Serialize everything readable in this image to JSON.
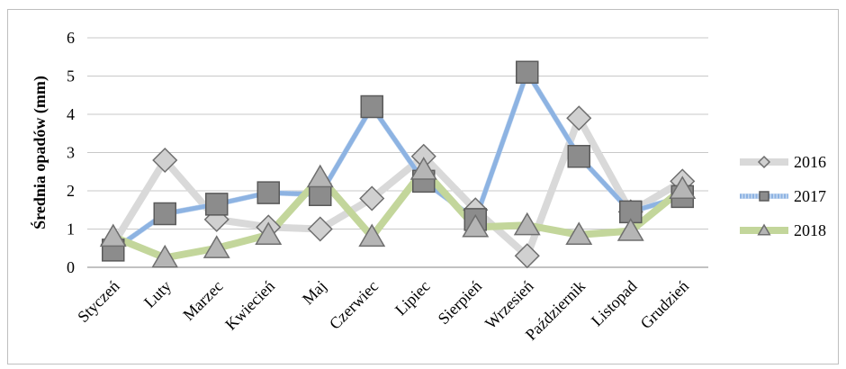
{
  "chart_data": {
    "type": "line",
    "title": "",
    "xlabel": "",
    "ylabel": "Średnia opadów (mm)",
    "ylim": [
      0,
      6
    ],
    "yticks": [
      0,
      1,
      2,
      3,
      4,
      5,
      6
    ],
    "grid": true,
    "legend_position": "right",
    "categories": [
      "Styczeń",
      "Luty",
      "Marzec",
      "Kwiecień",
      "Maj",
      "Czerwiec",
      "Lipiec",
      "Sierpień",
      "Wrzesień",
      "Październik",
      "Listopad",
      "Grudzień"
    ],
    "series": [
      {
        "name": "2016",
        "marker": "diamond",
        "color": "#d9d9d9",
        "values": [
          0.6,
          2.8,
          1.25,
          1.05,
          1.0,
          1.8,
          2.9,
          1.5,
          0.3,
          3.9,
          1.45,
          2.25
        ]
      },
      {
        "name": "2017",
        "marker": "square",
        "color": "#8db3e2",
        "values": [
          0.45,
          1.4,
          1.65,
          1.95,
          1.9,
          4.2,
          2.25,
          1.25,
          5.1,
          2.9,
          1.45,
          1.85
        ]
      },
      {
        "name": "2018",
        "marker": "triangle",
        "color": "#c3d69b",
        "values": [
          0.8,
          0.25,
          0.5,
          0.85,
          2.35,
          0.8,
          2.55,
          1.05,
          1.1,
          0.85,
          0.95,
          2.05
        ]
      }
    ]
  }
}
